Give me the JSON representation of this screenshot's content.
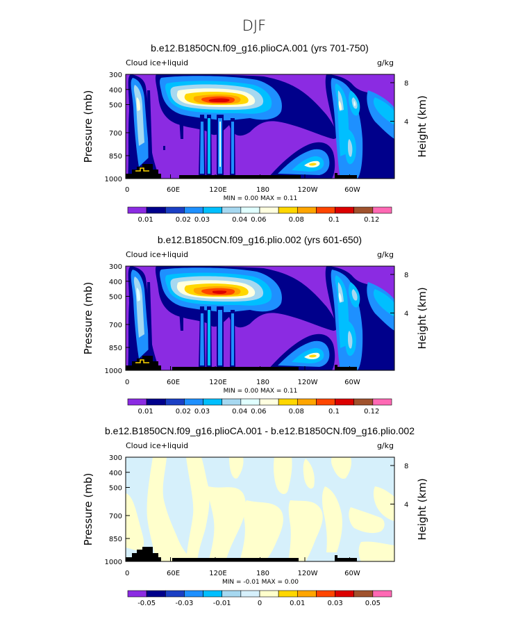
{
  "suptitle": "DJF",
  "chart_data": [
    {
      "type": "heatmap",
      "title": "b.e12.B1850CN.f09_g16.plioCA.001 (yrs 701-750)",
      "left_label": "Cloud ice+liquid",
      "right_label": "g/kg",
      "ylabel": "Pressure (mb)",
      "y2label": "Height (km)",
      "x_ticks": [
        "0",
        "60E",
        "120E",
        "180",
        "120W",
        "60W"
      ],
      "y_ticks": [
        "300",
        "400",
        "500",
        "700",
        "850",
        "1000"
      ],
      "y2_ticks": [
        "8",
        "4"
      ],
      "stats": "MIN =    0.00   MAX =    0.11",
      "colorbar_labels": [
        "0.01",
        "0.02",
        "0.03",
        "0.04",
        "0.06",
        "0.08",
        "0.1",
        "0.12"
      ],
      "colorbar_colors": [
        "#8b2be2",
        "#00008b",
        "#1b3fc4",
        "#1e90ff",
        "#00bfff",
        "#a6d8f0",
        "#e0ffff",
        "#ffffe0",
        "#ffd700",
        "#ffa500",
        "#ff4500",
        "#dc0000",
        "#a0522d",
        "#ff69b4"
      ],
      "xlim": [
        0,
        360
      ],
      "ylim": [
        1000,
        300
      ],
      "max": 0.11
    },
    {
      "type": "heatmap",
      "title": "b.e12.B1850CN.f09_g16.plio.002 (yrs 601-650)",
      "left_label": "Cloud ice+liquid",
      "right_label": "g/kg",
      "ylabel": "Pressure (mb)",
      "y2label": "Height (km)",
      "x_ticks": [
        "0",
        "60E",
        "120E",
        "180",
        "120W",
        "60W"
      ],
      "y_ticks": [
        "300",
        "400",
        "500",
        "700",
        "850",
        "1000"
      ],
      "y2_ticks": [
        "8",
        "4"
      ],
      "stats": "MIN =    0.00   MAX =    0.11",
      "colorbar_labels": [
        "0.01",
        "0.02",
        "0.03",
        "0.04",
        "0.06",
        "0.08",
        "0.1",
        "0.12"
      ],
      "colorbar_colors": [
        "#8b2be2",
        "#00008b",
        "#1b3fc4",
        "#1e90ff",
        "#00bfff",
        "#a6d8f0",
        "#e0ffff",
        "#ffffe0",
        "#ffd700",
        "#ffa500",
        "#ff4500",
        "#dc0000",
        "#a0522d",
        "#ff69b4"
      ],
      "xlim": [
        0,
        360
      ],
      "ylim": [
        1000,
        300
      ],
      "max": 0.11
    },
    {
      "type": "heatmap",
      "title": "b.e12.B1850CN.f09_g16.plioCA.001 - b.e12.B1850CN.f09_g16.plio.002",
      "left_label": "Cloud ice+liquid",
      "right_label": "g/kg",
      "ylabel": "Pressure (mb)",
      "y2label": "Height (km)",
      "x_ticks": [
        "0",
        "60E",
        "120E",
        "180",
        "120W",
        "60W"
      ],
      "y_ticks": [
        "300",
        "400",
        "500",
        "700",
        "850",
        "1000"
      ],
      "y2_ticks": [
        "8",
        "4"
      ],
      "stats": "MIN =   -0.01   MAX =    0.00",
      "colorbar_labels": [
        "-0.05",
        "-0.03",
        "-0.01",
        "0",
        "0.01",
        "0.03",
        "0.05"
      ],
      "colorbar_colors": [
        "#8b2be2",
        "#00008b",
        "#1b3fc4",
        "#1e90ff",
        "#00bfff",
        "#a6d8f0",
        "#d6f0fb",
        "#ffffcc",
        "#ffd700",
        "#ffa500",
        "#ff4500",
        "#dc0000",
        "#a0522d",
        "#ff69b4"
      ],
      "xlim": [
        0,
        360
      ],
      "ylim": [
        1000,
        300
      ],
      "min": -0.01,
      "max": 0.0
    }
  ]
}
